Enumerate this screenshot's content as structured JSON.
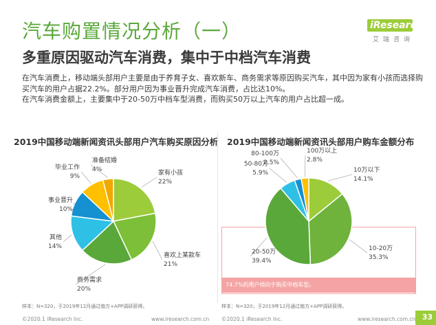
{
  "header": {
    "title": "汽车购置情况分析（一）",
    "subtitle": "多重原因驱动汽车消费，集中于中档汽车消费",
    "logo_text": "iResearch",
    "logo_cn": "艾瑞咨询"
  },
  "summary": {
    "line1": "在汽车消费上，移动端头部用户主要是由于养育子女、喜欢新车、商务需求等原因购买汽车，其中因为家有小孩而选择购",
    "line2": "买汽车的用户占据22.2%。部分用户因为事业晋升完成汽车消费，占比达10%。",
    "line3": "在汽车消费金额上，主要集中于20-50万中档车型消费，而购买50万以上汽车的用户占比超一成。"
  },
  "callout": "74.7%的用户倾向于购买中档车型。",
  "notes": {
    "left": "样本：N=320，于2019年12月通过南方+APP调研获得。",
    "right": "样本：N=320，于2019年12月通过南方+APP调研获得。"
  },
  "footer": {
    "left_copyright": "©2020.1 iResearch Inc.",
    "left_url": "www.iresearch.com.cn",
    "right_copyright": "©2020.1 iResearch Inc.",
    "right_url": "www.iresearch.com.cn",
    "page_number": "33"
  },
  "colors": {
    "accent_green": "#5aa83a",
    "slice_palette": [
      "#9ccc3a",
      "#6fb33c",
      "#2fc0e6",
      "#1590d0",
      "#ffc000"
    ],
    "callout_pink": "#f4a4a4"
  },
  "chart_data": [
    {
      "type": "pie",
      "title": "2019中国移动端新闻资讯头部用户汽车购买原因分析",
      "slices": [
        {
          "label": "家有小孩",
          "value": 22,
          "value_label": "22%",
          "color": "#9ccc3a"
        },
        {
          "label": "喜欢上某款车",
          "value": 21,
          "value_label": "21%",
          "color": "#7dbf38"
        },
        {
          "label": "商务需求",
          "value": 20,
          "value_label": "20%",
          "color": "#5aa83a"
        },
        {
          "label": "其他",
          "value": 14,
          "value_label": "14%",
          "color": "#2fc0e6"
        },
        {
          "label": "事业晋升",
          "value": 10,
          "value_label": "10%",
          "color": "#1590d0"
        },
        {
          "label": "毕业工作",
          "value": 9,
          "value_label": "9%",
          "color": "#ffc000"
        },
        {
          "label": "准备结婚",
          "value": 4,
          "value_label": "4%",
          "color": "#f0a800"
        }
      ]
    },
    {
      "type": "pie",
      "title": "2019中国移动端新闻资讯头部用户购车金额分布",
      "slices": [
        {
          "label": "10万以下",
          "value": 14.1,
          "value_label": "14.1%",
          "color": "#9ccc3a"
        },
        {
          "label": "10-20万",
          "value": 35.3,
          "value_label": "35.3%",
          "color": "#6fb33c"
        },
        {
          "label": "20-50万",
          "value": 39.4,
          "value_label": "39.4%",
          "color": "#5aa83a"
        },
        {
          "label": "50-80万",
          "value": 5.9,
          "value_label": "5.9%",
          "color": "#2fc0e6"
        },
        {
          "label": "80-100万",
          "value": 2.5,
          "value_label": "2.5%",
          "color": "#1590d0"
        },
        {
          "label": "100万以上",
          "value": 2.8,
          "value_label": "2.8%",
          "color": "#ffc000"
        }
      ]
    }
  ]
}
